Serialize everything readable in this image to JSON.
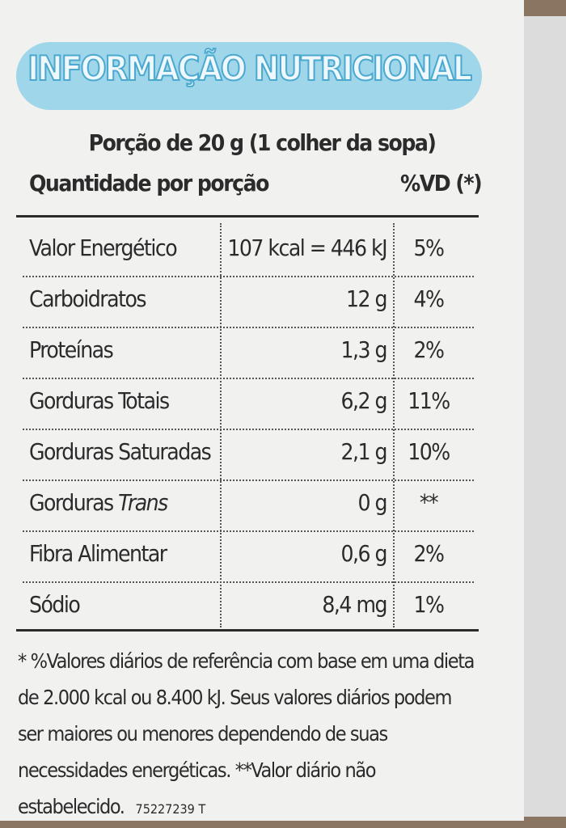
{
  "header": {
    "title": "INFORMAÇÃO NUTRICIONAL",
    "serving": "Porção de 20 g (1 colher da sopa)"
  },
  "table": {
    "columns": [
      "Quantidade por porção",
      "%VD (*)"
    ],
    "rows": [
      {
        "name": "Valor Energético",
        "amount": "107 kcal = 446 kJ",
        "dv": "5%"
      },
      {
        "name": "Carboidratos",
        "amount": "12 g",
        "dv": "4%"
      },
      {
        "name": "Proteínas",
        "amount": "1,3 g",
        "dv": "2%"
      },
      {
        "name": "Gorduras Totais",
        "amount": "6,2 g",
        "dv": "11%"
      },
      {
        "name": "Gorduras Saturadas",
        "amount": "2,1 g",
        "dv": "10%"
      },
      {
        "name": "Gorduras",
        "name_italic": "Trans",
        "amount": "0 g",
        "dv": "**"
      },
      {
        "name": "Fibra Alimentar",
        "amount": "0,6 g",
        "dv": "2%"
      },
      {
        "name": "Sódio",
        "amount": "8,4 mg",
        "dv": "1%"
      }
    ]
  },
  "footnote": {
    "text": "* %Valores diários de referência com base em uma dieta de 2.000 kcal ou 8.400 kJ. Seus valores diários podem ser maiores ou menores dependendo de suas necessidades energéticas. **Valor diário não estabelecido.",
    "code": "75227239 T"
  }
}
